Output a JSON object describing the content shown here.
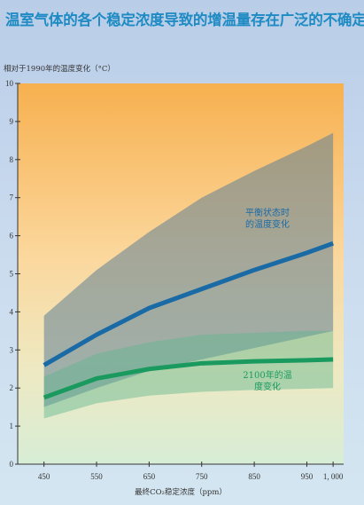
{
  "title": "温室气体的各个稳定浓度导致的增温量存在广泛的不确定性",
  "chart_data": {
    "type": "line",
    "ylabel": "相对于1990年的温度变化（°C）",
    "xlabel": "最终CO₂稳定浓度（ppm）",
    "xlim": [
      400,
      1020
    ],
    "ylim": [
      0,
      10
    ],
    "x_ticks": [
      450,
      550,
      650,
      750,
      850,
      950,
      1000
    ],
    "x_tick_labels": [
      "450",
      "550",
      "650",
      "750",
      "850",
      "950",
      "1, 000"
    ],
    "y_ticks": [
      0,
      1,
      2,
      3,
      4,
      5,
      6,
      7,
      8,
      9,
      10
    ],
    "series": [
      {
        "name": "平衡状态时的温度变化",
        "color": "#1a6aa6",
        "x": [
          450,
          550,
          650,
          750,
          850,
          950,
          1000
        ],
        "values": [
          2.6,
          3.4,
          4.1,
          4.6,
          5.1,
          5.55,
          5.8
        ],
        "band_upper": [
          3.9,
          5.1,
          6.1,
          7.0,
          7.7,
          8.35,
          8.7
        ],
        "band_lower": [
          1.5,
          2.0,
          2.45,
          2.75,
          3.05,
          3.35,
          3.5
        ]
      },
      {
        "name": "2100年的温度变化",
        "color": "#1a9a5e",
        "x": [
          450,
          550,
          650,
          750,
          850,
          950,
          1000
        ],
        "values": [
          1.75,
          2.25,
          2.5,
          2.65,
          2.7,
          2.73,
          2.75
        ],
        "band_upper": [
          2.3,
          2.9,
          3.2,
          3.4,
          3.45,
          3.5,
          3.5
        ],
        "band_lower": [
          1.2,
          1.6,
          1.8,
          1.9,
          1.95,
          1.98,
          2.0
        ]
      }
    ],
    "annotations": [
      {
        "lines": [
          "平衡状态时",
          "的温度变化"
        ],
        "color": "#1a6aa6"
      },
      {
        "lines": [
          "2100年的温",
          "度变化"
        ],
        "color": "#1a9a5e"
      }
    ]
  }
}
